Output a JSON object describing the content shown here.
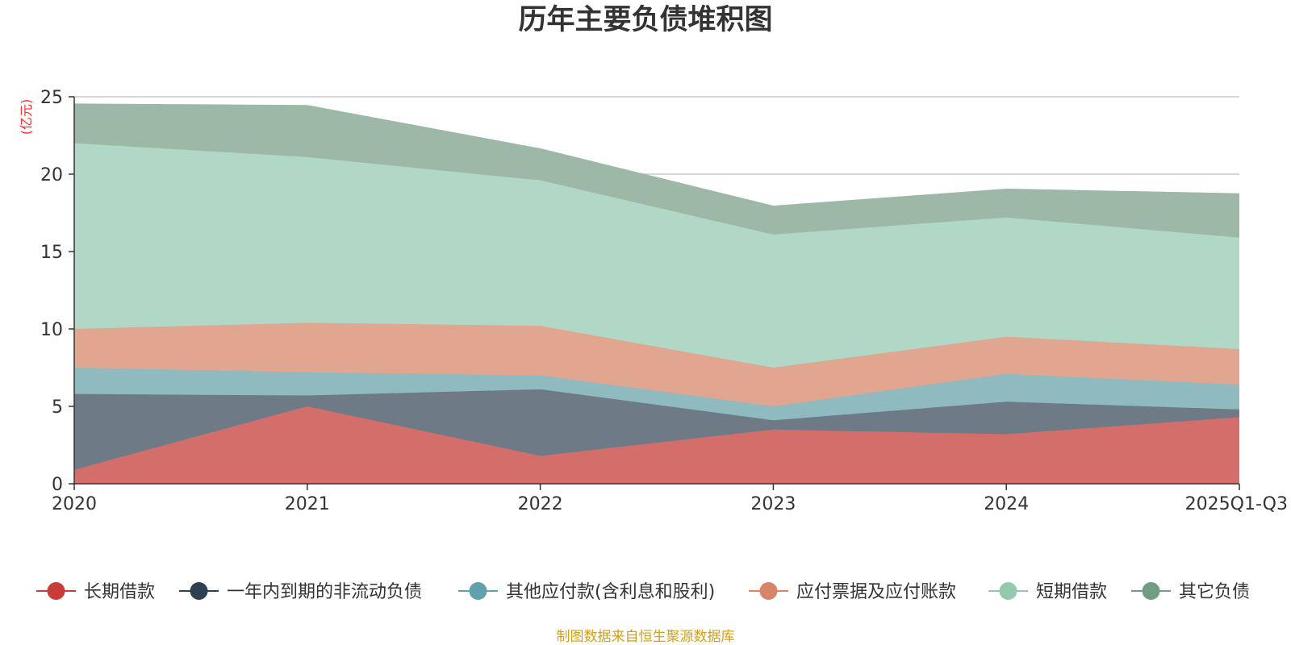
{
  "chart_data": {
    "type": "area",
    "stacked": true,
    "title": "历年主要负债堆积图",
    "ylabel": "(亿元)",
    "xlabel": "",
    "categories": [
      "2020",
      "2021",
      "2022",
      "2023",
      "2024",
      "2025Q1-Q3"
    ],
    "ylim": [
      0,
      25
    ],
    "yticks": [
      0,
      5,
      10,
      15,
      20,
      25
    ],
    "grid": true,
    "legend_position": "bottom",
    "series": [
      {
        "name": "长期借款",
        "color": "#d46e6a",
        "legend_color": "#c83c3a",
        "values": [
          0.9,
          5.0,
          1.8,
          3.5,
          3.2,
          4.3
        ]
      },
      {
        "name": "一年内到期的非流动负债",
        "color": "#6e7b86",
        "legend_color": "#2d4152",
        "values": [
          4.9,
          0.7,
          4.3,
          0.6,
          2.1,
          0.5
        ]
      },
      {
        "name": "其他应付款(含利息和股利)",
        "color": "#8fbac0",
        "legend_color": "#62a0ac",
        "values": [
          1.7,
          1.5,
          0.9,
          0.9,
          1.8,
          1.6
        ]
      },
      {
        "name": "应付票据及应付账款",
        "color": "#e0a690",
        "legend_color": "#d9846a",
        "values": [
          2.5,
          3.2,
          3.2,
          2.5,
          2.4,
          2.3
        ]
      },
      {
        "name": "短期借款",
        "color": "#b1d8c6",
        "legend_color": "#92c9b0",
        "values": [
          12.0,
          10.7,
          9.4,
          8.6,
          7.7,
          7.2
        ]
      },
      {
        "name": "其它负债",
        "color": "#9db8a6",
        "legend_color": "#6f9e82",
        "values": [
          2.5,
          3.3,
          2.0,
          1.8,
          1.8,
          2.8
        ]
      }
    ],
    "source": "制图数据来自恒生聚源数据库"
  }
}
